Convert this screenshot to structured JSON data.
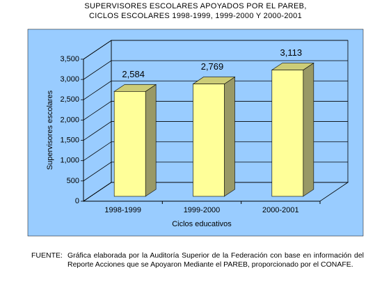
{
  "chart_data": {
    "type": "bar3d",
    "title": "SUPERVISORES ESCOLARES APOYADOS POR EL PAREB,",
    "subtitle": "CICLOS ESCOLARES 1998-1999, 1999-2000 Y 2000-2001",
    "categories": [
      "1998-1999",
      "1999-2000",
      "2000-2001"
    ],
    "values": [
      2584,
      2769,
      3113
    ],
    "value_labels": [
      "2,584",
      "2,769",
      "3,113"
    ],
    "color": "#ffff99",
    "background": "#99ccff",
    "ylim": [
      0,
      3500
    ],
    "yticks": [
      0,
      500,
      {
        "value": 1000,
        "label": "1,000"
      },
      {
        "value": 1500,
        "label": "1,500"
      },
      {
        "value": 2000,
        "label": "2,000"
      },
      {
        "value": 2500,
        "label": "2,500"
      },
      {
        "value": 3000,
        "label": "3,000"
      },
      {
        "value": 3500,
        "label": "3,500"
      }
    ],
    "ylabel": "Supervisores escolares",
    "xlabel": "Ciclos educativos",
    "grid": true
  },
  "footer": {
    "label": "FUENTE:",
    "text": "Gráfica elaborada por la Auditoría Superior de la Federación con base en información del Reporte Acciones que se Apoyaron Mediante el PAREB, proporcionado por el CONAFE."
  }
}
